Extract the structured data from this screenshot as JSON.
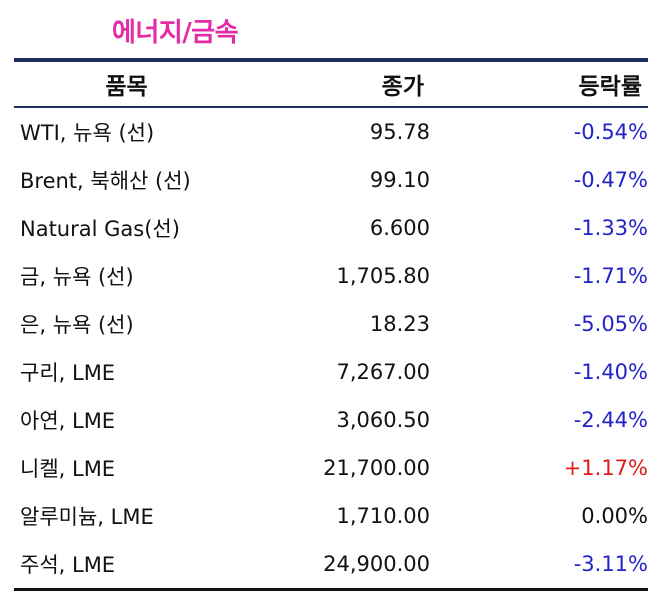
{
  "title": "에너지/금속",
  "header": {
    "item": "품목",
    "price": "종가",
    "change": "등락률"
  },
  "rows": [
    {
      "item": "WTI, 뉴욕 (선)",
      "price": "95.78",
      "change": "-0.54%",
      "dir": "neg"
    },
    {
      "item": "Brent, 북해산 (선)",
      "price": "99.10",
      "change": "-0.47%",
      "dir": "neg"
    },
    {
      "item": "Natural Gas(선)",
      "price": "6.600",
      "change": "-1.33%",
      "dir": "neg"
    },
    {
      "item": "금, 뉴욕  (선)",
      "price": "1,705.80",
      "change": "-1.71%",
      "dir": "neg"
    },
    {
      "item": "은, 뉴욕  (선)",
      "price": "18.23",
      "change": "-5.05%",
      "dir": "neg"
    },
    {
      "item": "구리, LME",
      "price": "7,267.00",
      "change": "-1.40%",
      "dir": "neg"
    },
    {
      "item": "아연, LME",
      "price": "3,060.50",
      "change": "-2.44%",
      "dir": "neg"
    },
    {
      "item": "니켈, LME",
      "price": "21,700.00",
      "change": "+1.17%",
      "dir": "pos"
    },
    {
      "item": "알루미늄, LME",
      "price": "1,710.00",
      "change": "0.00%",
      "dir": "flat"
    },
    {
      "item": "주석, LME",
      "price": "24,900.00",
      "change": "-3.11%",
      "dir": "neg"
    }
  ],
  "colors": {
    "title": "#e52aa6",
    "negative": "#2323c9",
    "positive": "#e01b1b",
    "rule": "#1d2f5e"
  }
}
